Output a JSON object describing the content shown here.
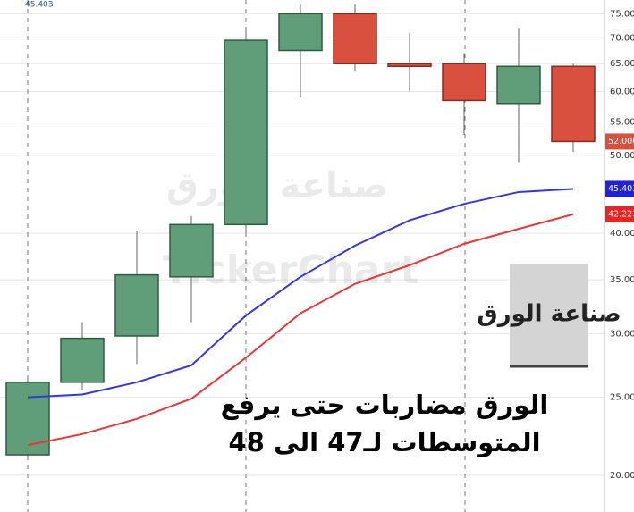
{
  "chart_data": {
    "type": "candlestick",
    "categories": [
      null,
      null,
      null,
      null,
      null,
      null,
      null,
      null,
      null,
      null,
      null
    ],
    "open": [
      21.2,
      26.1,
      29.8,
      35.3,
      41,
      67.5,
      75,
      65,
      65,
      58,
      64.5
    ],
    "high": [
      26.5,
      31,
      40.3,
      42,
      72,
      77,
      77,
      71,
      67,
      72,
      65
    ],
    "low": [
      21,
      25.5,
      27.5,
      31,
      40,
      59,
      63.5,
      60,
      53,
      49,
      50.5
    ],
    "close": [
      26.1,
      29.6,
      35.5,
      41,
      69.5,
      75,
      65,
      64.5,
      58.5,
      64.5,
      52
    ],
    "up_color": "#5f9e78",
    "down_color": "#d9503f",
    "series": [
      {
        "color": "#3535ee",
        "values": [
          25.0,
          25.2,
          26.1,
          27.4,
          31.6,
          35.3,
          38.6,
          41.5,
          43.5,
          45.0,
          45.403
        ]
      },
      {
        "color": "#ee3535",
        "values": [
          21.8,
          22.5,
          23.5,
          24.9,
          28.0,
          31.8,
          34.6,
          36.5,
          38.8,
          40.5,
          42.223
        ]
      }
    ],
    "log_y": true,
    "ylim": [
      18,
      78
    ],
    "yticks": [
      {
        "value": 20,
        "label": "20.000"
      },
      {
        "value": 25,
        "label": "25.000"
      },
      {
        "value": 30,
        "label": "30.000"
      },
      {
        "value": 35,
        "label": "35.000"
      },
      {
        "value": 40,
        "label": "40.000"
      },
      {
        "value": 50,
        "label": "50.000"
      },
      {
        "value": 55,
        "label": "55.000"
      },
      {
        "value": 60,
        "label": "60.000"
      },
      {
        "value": 65,
        "label": "65.000"
      },
      {
        "value": 70,
        "label": "70.000"
      },
      {
        "value": 75,
        "label": "75.000"
      }
    ],
    "grid": true,
    "price_labels": [
      {
        "value": 52,
        "label": "52.000",
        "color": "#d9503f"
      },
      {
        "value": 45.403,
        "label": "45.403",
        "color": "#2020dd"
      },
      {
        "value": 42.223,
        "label": "42.223",
        "color": "#ee2222"
      }
    ],
    "header_value": {
      "value": 45.403,
      "label": "45.403"
    },
    "watermarks": [
      "صناعة الورق",
      "TickerChart"
    ],
    "logo_text": "صناعة الورق",
    "caption": [
      "الورق مضاربات حتى يرفع",
      "المتوسطات لـ47 الى 48"
    ]
  }
}
